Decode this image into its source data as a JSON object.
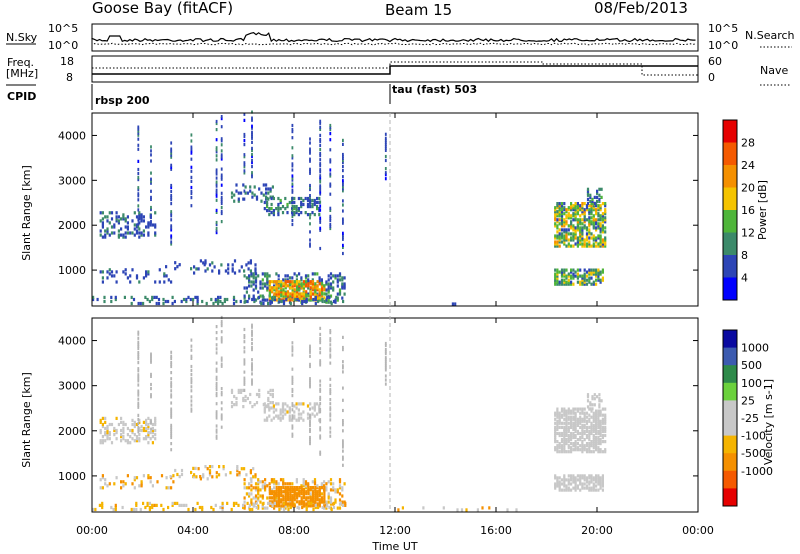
{
  "header": {
    "site": "Goose Bay (fitACF)",
    "beam": "Beam 15",
    "date": "08/Feb/2013"
  },
  "panels": {
    "nsky_label": "N.Sky",
    "nsearch_label": "N.Search",
    "nsky_ticks": [
      "10^5",
      "10^0"
    ],
    "nsearch_ticks": [
      "10^5",
      "10^0"
    ],
    "freq_label_1": "Freq.",
    "freq_label_2": "[MHz]",
    "freq_ticks": [
      "18",
      "8"
    ],
    "nave_label": "Nave",
    "nave_ticks": [
      "60",
      "0"
    ],
    "cpid_label": "CPID",
    "cpid_entries": [
      {
        "name": "rbsp 200",
        "start_hour": 0
      },
      {
        "name": "tau (fast) 503",
        "start_hour": 12
      }
    ]
  },
  "x_axis": {
    "label": "Time UT",
    "ticks": [
      "00:00",
      "04:00",
      "08:00",
      "12:00",
      "16:00",
      "20:00",
      "00:00"
    ],
    "range_hours": [
      0,
      24
    ]
  },
  "colors": {
    "power_scale": [
      "#0000ff",
      "#2d45b6",
      "#3c8a6a",
      "#4fb53a",
      "#f5c400",
      "#f59000",
      "#f55a00",
      "#e60000"
    ],
    "velocity_scale": [
      "#e60000",
      "#f55a00",
      "#f59000",
      "#f5b400",
      "#c8c8c8",
      "#c8c8c8",
      "#6bd13c",
      "#2e8a4a",
      "#3c5bb0",
      "#0a0aa0"
    ],
    "ground_scatter": "#b4b4b4",
    "frame": "#000000"
  },
  "chart_data": [
    {
      "type": "heatmap",
      "title": "",
      "xlabel": "Time UT",
      "ylabel": "Slant Range [km]",
      "xlim": [
        0,
        24
      ],
      "ylim": [
        200,
        4500
      ],
      "y_ticks": [
        1000,
        2000,
        3000,
        4000
      ],
      "colorbar": {
        "label": "Power [dB]",
        "ticks": [
          "4",
          "8",
          "12",
          "16",
          "20",
          "24",
          "28"
        ],
        "range": [
          0,
          30
        ]
      },
      "regions": [
        {
          "t": [
            0.3,
            2.5
          ],
          "r": [
            1700,
            2250
          ],
          "dens": 0.35,
          "v": [
            4,
            10
          ]
        },
        {
          "t": [
            0.3,
            3.2
          ],
          "r": [
            700,
            1000
          ],
          "dens": 0.15,
          "v": [
            4,
            8
          ]
        },
        {
          "t": [
            2.8,
            4.5
          ],
          "r": [
            950,
            1150
          ],
          "dens": 0.1,
          "v": [
            4,
            8
          ]
        },
        {
          "t": [
            4.0,
            6.5
          ],
          "r": [
            900,
            1200
          ],
          "dens": 0.18,
          "v": [
            4,
            8
          ]
        },
        {
          "t": [
            5.5,
            7.2
          ],
          "r": [
            2500,
            2900
          ],
          "dens": 0.3,
          "v": [
            4,
            10
          ]
        },
        {
          "t": [
            6.8,
            9.0
          ],
          "r": [
            2200,
            2600
          ],
          "dens": 0.4,
          "v": [
            4,
            12
          ]
        },
        {
          "t": [
            6.0,
            10.0
          ],
          "r": [
            250,
            900
          ],
          "dens": 0.35,
          "v": [
            4,
            12
          ]
        },
        {
          "t": [
            7.0,
            9.2
          ],
          "r": [
            300,
            750
          ],
          "dens": 0.75,
          "v": [
            12,
            26
          ]
        },
        {
          "t": [
            0.0,
            10.0
          ],
          "r": [
            220,
            380
          ],
          "dens": 0.25,
          "v": [
            4,
            10
          ]
        },
        {
          "t": [
            18.3,
            20.3
          ],
          "r": [
            1500,
            2450
          ],
          "dens": 0.65,
          "v": [
            6,
            20
          ]
        },
        {
          "t": [
            18.3,
            20.2
          ],
          "r": [
            650,
            1000
          ],
          "dens": 0.65,
          "v": [
            6,
            18
          ]
        },
        {
          "t": [
            19.6,
            20.2
          ],
          "r": [
            2450,
            2800
          ],
          "dens": 0.4,
          "v": [
            4,
            12
          ]
        },
        {
          "t": [
            12.0,
            18.0
          ],
          "r": [
            210,
            300
          ],
          "dens": 0.05,
          "v": [
            4,
            8
          ]
        }
      ],
      "spikes": [
        {
          "t": 1.8,
          "r": [
            1900,
            4200
          ]
        },
        {
          "t": 2.3,
          "r": [
            2000,
            3800
          ]
        },
        {
          "t": 3.1,
          "r": [
            1500,
            3800
          ]
        },
        {
          "t": 3.9,
          "r": [
            2400,
            4000
          ]
        },
        {
          "t": 4.9,
          "r": [
            1800,
            4300
          ]
        },
        {
          "t": 5.1,
          "r": [
            2000,
            4500
          ]
        },
        {
          "t": 6.0,
          "r": [
            2500,
            4500
          ]
        },
        {
          "t": 6.3,
          "r": [
            3000,
            4500
          ]
        },
        {
          "t": 7.9,
          "r": [
            1800,
            4200
          ]
        },
        {
          "t": 8.6,
          "r": [
            1500,
            3900
          ]
        },
        {
          "t": 9.0,
          "r": [
            1400,
            4300
          ]
        },
        {
          "t": 9.4,
          "r": [
            1800,
            4200
          ]
        },
        {
          "t": 9.9,
          "r": [
            1200,
            4100
          ]
        },
        {
          "t": 11.6,
          "r": [
            3000,
            4000
          ]
        }
      ]
    },
    {
      "type": "heatmap",
      "title": "",
      "xlabel": "Time UT",
      "ylabel": "Slant Range [km]",
      "xlim": [
        0,
        24
      ],
      "ylim": [
        200,
        4500
      ],
      "y_ticks": [
        1000,
        2000,
        3000,
        4000
      ],
      "colorbar": {
        "label": "Velocity [m s-1]",
        "ticks": [
          "1000",
          "500",
          "100",
          "25",
          "-25",
          "-100",
          "-500",
          "-1000"
        ],
        "range": [
          -1000,
          1000
        ]
      },
      "regions": [
        {
          "t": [
            0.3,
            2.5
          ],
          "r": [
            1700,
            2250
          ],
          "dens": 0.35,
          "v": [
            -40,
            40
          ]
        },
        {
          "t": [
            0.3,
            3.2
          ],
          "r": [
            700,
            1000
          ],
          "dens": 0.15,
          "v": [
            -200,
            60
          ]
        },
        {
          "t": [
            2.8,
            4.5
          ],
          "r": [
            950,
            1150
          ],
          "dens": 0.1,
          "v": [
            -150,
            80
          ]
        },
        {
          "t": [
            4.0,
            6.5
          ],
          "r": [
            900,
            1200
          ],
          "dens": 0.18,
          "v": [
            -200,
            60
          ]
        },
        {
          "t": [
            5.5,
            7.2
          ],
          "r": [
            2500,
            2900
          ],
          "dens": 0.3,
          "v": [
            -30,
            30
          ]
        },
        {
          "t": [
            6.8,
            9.0
          ],
          "r": [
            2200,
            2600
          ],
          "dens": 0.4,
          "v": [
            -30,
            30
          ]
        },
        {
          "t": [
            6.0,
            10.0
          ],
          "r": [
            250,
            900
          ],
          "dens": 0.35,
          "v": [
            -150,
            40
          ]
        },
        {
          "t": [
            7.0,
            9.2
          ],
          "r": [
            300,
            750
          ],
          "dens": 0.75,
          "v": [
            -450,
            -120
          ]
        },
        {
          "t": [
            0.0,
            10.0
          ],
          "r": [
            220,
            380
          ],
          "dens": 0.25,
          "v": [
            -120,
            40
          ]
        },
        {
          "t": [
            18.3,
            20.3
          ],
          "r": [
            1500,
            2450
          ],
          "dens": 0.65,
          "v": [
            -20,
            20
          ]
        },
        {
          "t": [
            18.3,
            20.2
          ],
          "r": [
            650,
            1000
          ],
          "dens": 0.65,
          "v": [
            60,
            100
          ]
        },
        {
          "t": [
            19.6,
            20.2
          ],
          "r": [
            2450,
            2800
          ],
          "dens": 0.4,
          "v": [
            -20,
            20
          ]
        },
        {
          "t": [
            12.0,
            18.0
          ],
          "r": [
            210,
            300
          ],
          "dens": 0.05,
          "v": [
            -120,
            40
          ]
        }
      ],
      "spikes": [
        {
          "t": 1.8,
          "r": [
            1900,
            4200
          ]
        },
        {
          "t": 2.3,
          "r": [
            2000,
            3800
          ]
        },
        {
          "t": 3.1,
          "r": [
            1500,
            3800
          ]
        },
        {
          "t": 3.9,
          "r": [
            2400,
            4000
          ]
        },
        {
          "t": 4.9,
          "r": [
            1800,
            4300
          ]
        },
        {
          "t": 5.1,
          "r": [
            2000,
            4500
          ]
        },
        {
          "t": 6.0,
          "r": [
            2500,
            4500
          ]
        },
        {
          "t": 6.3,
          "r": [
            3000,
            4500
          ]
        },
        {
          "t": 7.9,
          "r": [
            1800,
            4200
          ]
        },
        {
          "t": 8.6,
          "r": [
            1500,
            3900
          ]
        },
        {
          "t": 9.0,
          "r": [
            1400,
            4300
          ]
        },
        {
          "t": 9.4,
          "r": [
            1800,
            4200
          ]
        },
        {
          "t": 9.9,
          "r": [
            1200,
            4100
          ]
        },
        {
          "t": 11.6,
          "r": [
            3000,
            4000
          ]
        }
      ]
    }
  ]
}
